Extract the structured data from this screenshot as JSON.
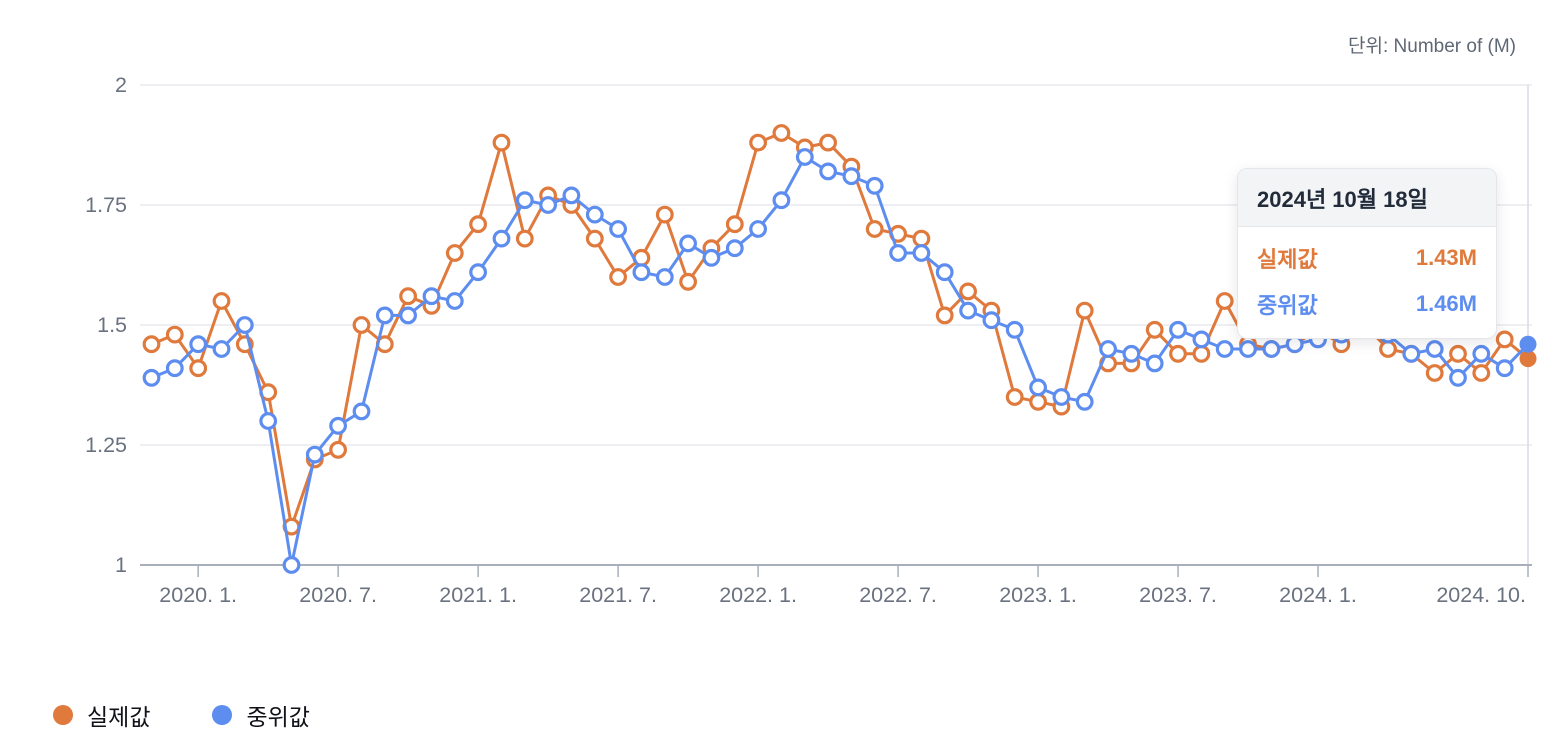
{
  "unit_label": "단위: Number of (M)",
  "colors": {
    "actual": "#E0793C",
    "median": "#5E8DF0",
    "axis_text": "#6A7280",
    "grid": "#E9EAEE",
    "axis_line": "#A9AFBA",
    "guide": "#D9DCE2",
    "tooltip_header_bg": "#F3F4F6",
    "tooltip_border": "#E5E6EA",
    "tooltip_date_text": "#222B3A",
    "legend_text": "#101218",
    "unit_text": "#5E6775",
    "background": "#FFFFFF"
  },
  "tooltip": {
    "date": "2024년 10월 18일",
    "rows": [
      {
        "label": "실제값",
        "value": "1.43M"
      },
      {
        "label": "중위값",
        "value": "1.46M"
      }
    ]
  },
  "legend": {
    "items": [
      {
        "label": "실제값"
      },
      {
        "label": "중위값"
      }
    ]
  },
  "chart_data": {
    "type": "line",
    "title": "",
    "unit": "Number of (M)",
    "grid": true,
    "legend_position": "bottom-left",
    "hover_index": 59,
    "ylim": [
      1,
      2
    ],
    "y_ticks": [
      1,
      1.25,
      1.5,
      1.75,
      2
    ],
    "x_ticks": [
      {
        "index": 2,
        "label": "2020. 1."
      },
      {
        "index": 8,
        "label": "2020. 7."
      },
      {
        "index": 14,
        "label": "2021. 1."
      },
      {
        "index": 20,
        "label": "2021. 7."
      },
      {
        "index": 26,
        "label": "2022. 1."
      },
      {
        "index": 32,
        "label": "2022. 7."
      },
      {
        "index": 38,
        "label": "2023. 1."
      },
      {
        "index": 44,
        "label": "2023. 7."
      },
      {
        "index": 50,
        "label": "2024. 1."
      },
      {
        "index": 59,
        "label": "2024. 10."
      }
    ],
    "x": [
      "2019-11",
      "2019-12",
      "2020-01",
      "2020-02",
      "2020-03",
      "2020-04",
      "2020-05",
      "2020-06",
      "2020-07",
      "2020-08",
      "2020-09",
      "2020-10",
      "2020-11",
      "2020-12",
      "2021-01",
      "2021-02",
      "2021-03",
      "2021-04",
      "2021-05",
      "2021-06",
      "2021-07",
      "2021-08",
      "2021-09",
      "2021-10",
      "2021-11",
      "2021-12",
      "2022-01",
      "2022-02",
      "2022-03",
      "2022-04",
      "2022-05",
      "2022-06",
      "2022-07",
      "2022-08",
      "2022-09",
      "2022-10",
      "2022-11",
      "2022-12",
      "2023-01",
      "2023-02",
      "2023-03",
      "2023-04",
      "2023-05",
      "2023-06",
      "2023-07",
      "2023-08",
      "2023-09",
      "2023-10",
      "2023-11",
      "2023-12",
      "2024-01",
      "2024-02",
      "2024-03",
      "2024-04",
      "2024-05",
      "2024-06",
      "2024-07",
      "2024-08",
      "2024-09",
      "2024-10"
    ],
    "series": [
      {
        "name": "실제값",
        "color": "#E0793C",
        "values": [
          1.46,
          1.48,
          1.41,
          1.55,
          1.46,
          1.36,
          1.08,
          1.22,
          1.24,
          1.5,
          1.46,
          1.56,
          1.54,
          1.65,
          1.71,
          1.88,
          1.68,
          1.77,
          1.75,
          1.68,
          1.6,
          1.64,
          1.73,
          1.59,
          1.66,
          1.71,
          1.88,
          1.9,
          1.87,
          1.88,
          1.83,
          1.7,
          1.69,
          1.68,
          1.52,
          1.57,
          1.53,
          1.35,
          1.34,
          1.33,
          1.53,
          1.42,
          1.42,
          1.49,
          1.44,
          1.44,
          1.55,
          1.46,
          1.45,
          1.46,
          1.49,
          1.46,
          1.5,
          1.45,
          1.44,
          1.4,
          1.44,
          1.4,
          1.47,
          1.43
        ]
      },
      {
        "name": "중위값",
        "color": "#5E8DF0",
        "values": [
          1.39,
          1.41,
          1.46,
          1.45,
          1.5,
          1.3,
          1.0,
          1.23,
          1.29,
          1.32,
          1.52,
          1.52,
          1.56,
          1.55,
          1.61,
          1.68,
          1.76,
          1.75,
          1.77,
          1.73,
          1.7,
          1.61,
          1.6,
          1.67,
          1.64,
          1.66,
          1.7,
          1.76,
          1.85,
          1.82,
          1.81,
          1.79,
          1.65,
          1.65,
          1.61,
          1.53,
          1.51,
          1.49,
          1.37,
          1.35,
          1.34,
          1.45,
          1.44,
          1.42,
          1.49,
          1.47,
          1.45,
          1.45,
          1.45,
          1.46,
          1.47,
          1.48,
          1.49,
          1.48,
          1.44,
          1.45,
          1.39,
          1.44,
          1.41,
          1.46
        ]
      }
    ]
  }
}
